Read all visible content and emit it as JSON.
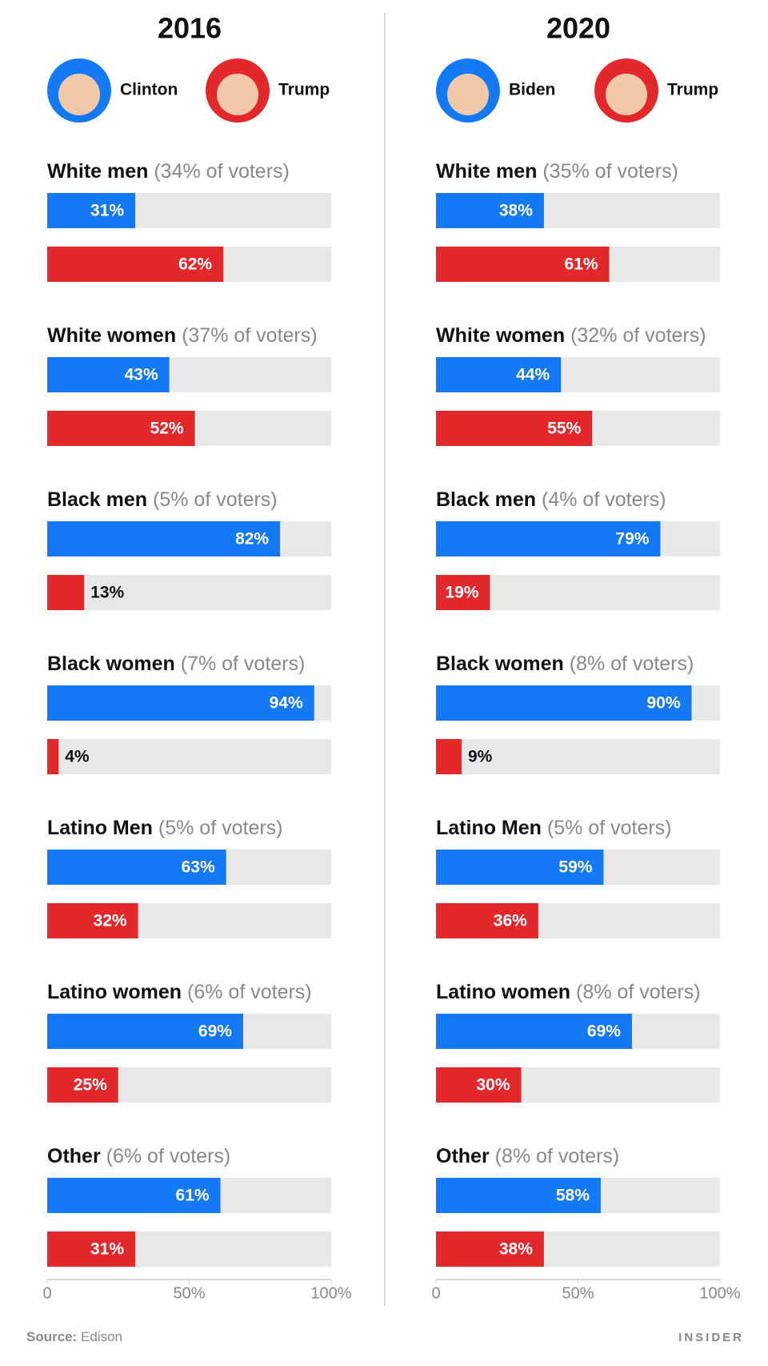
{
  "chart_data": [
    {
      "type": "bar",
      "title": "2016",
      "categories": [
        "White men",
        "White women",
        "Black men",
        "Black women",
        "Latino Men",
        "Latino women",
        "Other"
      ],
      "category_notes": [
        "(34% of voters)",
        "(37% of voters)",
        "(5% of voters)",
        "(7% of voters)",
        "(5% of voters)",
        "(6% of voters)",
        "(6% of voters)"
      ],
      "series": [
        {
          "name": "Clinton",
          "color": "#1479f5",
          "values": [
            31,
            43,
            82,
            94,
            63,
            69,
            61
          ],
          "value_labels": [
            "31%",
            "43%",
            "82%",
            "94%",
            "63%",
            "69%",
            "61%"
          ]
        },
        {
          "name": "Trump",
          "color": "#e3282b",
          "values": [
            62,
            52,
            13,
            4,
            32,
            25,
            31
          ],
          "value_labels": [
            "62%",
            "52%",
            "13%",
            "4%",
            "32%",
            "25%",
            "31%"
          ]
        }
      ],
      "xlim": [
        0,
        100
      ],
      "xticks": [
        0,
        {
          "value": 50,
          "label": "50%"
        },
        {
          "value": 100,
          "label": "100%"
        }
      ]
    },
    {
      "type": "bar",
      "title": "2020",
      "categories": [
        "White men",
        "White women",
        "Black men",
        "Black women",
        "Latino Men",
        "Latino women",
        "Other"
      ],
      "category_notes": [
        "(35% of voters)",
        "(32% of voters)",
        "(4% of voters)",
        "(8% of voters)",
        "(5% of voters)",
        "(8% of voters)",
        "(8% of voters)"
      ],
      "series": [
        {
          "name": "Biden",
          "color": "#1479f5",
          "values": [
            38,
            44,
            79,
            90,
            59,
            69,
            58
          ],
          "value_labels": [
            "38%",
            "44%",
            "79%",
            "90%",
            "59%",
            "69%",
            "58%"
          ]
        },
        {
          "name": "Trump",
          "color": "#e3282b",
          "values": [
            61,
            55,
            19,
            9,
            36,
            30,
            38
          ],
          "value_labels": [
            "61%",
            "55%",
            "19%",
            "9%",
            "36%",
            "30%",
            "38%"
          ]
        }
      ],
      "xlim": [
        0,
        100
      ],
      "xticks": [
        0,
        {
          "value": 50,
          "label": "50%"
        },
        {
          "value": 100,
          "label": "100%"
        }
      ]
    }
  ],
  "source_label": "Source:",
  "source": "Edison",
  "brand": "INSIDER"
}
